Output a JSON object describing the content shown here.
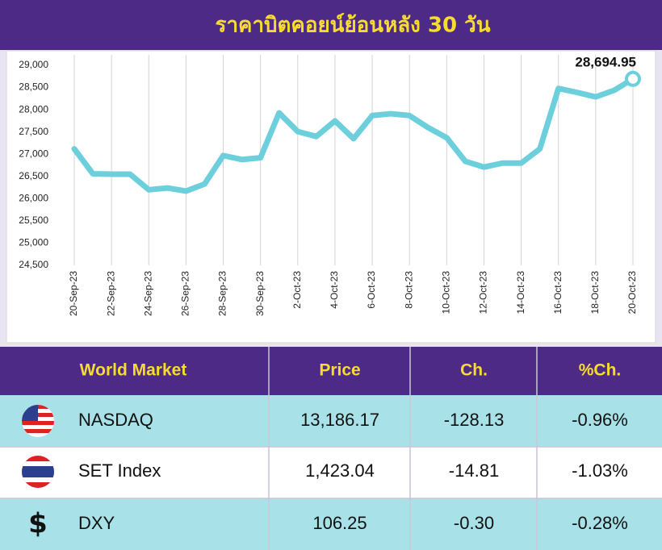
{
  "chart_data": {
    "type": "line",
    "title": "ราคาบิตคอยน์ย้อนหลัง 30 วัน",
    "categories": [
      "20-Sep-23",
      null,
      "22-Sep-23",
      null,
      "24-Sep-23",
      null,
      "26-Sep-23",
      null,
      "28-Sep-23",
      null,
      "30-Sep-23",
      null,
      "2-Oct-23",
      null,
      "4-Oct-23",
      null,
      "6-Oct-23",
      null,
      "8-Oct-23",
      null,
      "10-Oct-23",
      null,
      "12-Oct-23",
      null,
      "14-Oct-23",
      null,
      "16-Oct-23",
      null,
      "18-Oct-23",
      null,
      "20-Oct-23"
    ],
    "values": [
      27120,
      26560,
      26550,
      26550,
      26200,
      26240,
      26170,
      26330,
      26970,
      26880,
      26920,
      27930,
      27510,
      27400,
      27750,
      27350,
      27870,
      27910,
      27870,
      27600,
      27370,
      26840,
      26710,
      26800,
      26800,
      27120,
      28480,
      28390,
      28290,
      28440,
      28694.95
    ],
    "value_labels": [
      null,
      null,
      null,
      null,
      null,
      null,
      null,
      null,
      null,
      null,
      null,
      null,
      null,
      null,
      null,
      null,
      null,
      null,
      null,
      null,
      null,
      null,
      null,
      null,
      null,
      null,
      null,
      null,
      null,
      null,
      "28,694.95"
    ],
    "color": "#6dcfdc",
    "ylim": [
      24500,
      29000
    ],
    "yticks": [
      {
        "value": 24500,
        "label": "24,500"
      },
      {
        "value": 25000,
        "label": "25,000"
      },
      {
        "value": 25500,
        "label": "25,500"
      },
      {
        "value": 26000,
        "label": "26,000"
      },
      {
        "value": 26500,
        "label": "26,500"
      },
      {
        "value": 27000,
        "label": "27,000"
      },
      {
        "value": 27500,
        "label": "27,500"
      },
      {
        "value": 28000,
        "label": "28,000"
      },
      {
        "value": 28500,
        "label": "28,500"
      },
      {
        "value": 29000,
        "label": "29,000"
      }
    ],
    "grid": true
  },
  "table": {
    "header": [
      "World Market",
      "Price",
      "Ch.",
      "%Ch."
    ],
    "rows": [
      {
        "name": "NASDAQ",
        "price": "13,186.17",
        "change": "-128.13",
        "pct": "-0.96%"
      },
      {
        "name": "SET Index",
        "price": "1,423.04",
        "change": "-14.81",
        "pct": "-1.03%"
      },
      {
        "icon": "$",
        "name": "DXY",
        "price": "106.25",
        "change": "-0.30",
        "pct": "-0.28%"
      }
    ]
  }
}
